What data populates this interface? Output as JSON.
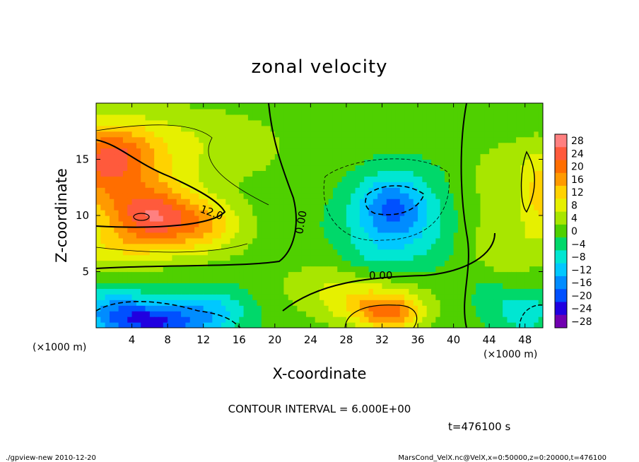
{
  "chart_data": {
    "type": "heatmap",
    "subtype": "filled contour",
    "title": "zonal velocity",
    "xlabel": "X-coordinate",
    "ylabel": "Z-coordinate",
    "x_unit_left": "(×1000 m)",
    "x_unit_right": "(×1000 m)",
    "xlim": [
      0,
      50
    ],
    "ylim": [
      0,
      20
    ],
    "x_ticks": [
      4,
      8,
      12,
      16,
      20,
      24,
      28,
      32,
      36,
      40,
      44,
      48
    ],
    "y_ticks": [
      5,
      10,
      15
    ],
    "contour_interval_text": "CONTOUR INTERVAL = 6.000E+00",
    "time_text": "t=476100 s",
    "contour_labels": [
      "12.0",
      "0.00",
      "0.00"
    ],
    "colorbar": {
      "levels": [
        28,
        24,
        20,
        16,
        12,
        8,
        4,
        0,
        -4,
        -8,
        -12,
        -16,
        -20,
        -24,
        -28
      ],
      "labels": [
        "28",
        "24",
        "20",
        "16",
        "12",
        "8",
        "4",
        "0",
        "−4",
        "−8",
        "−12",
        "−16",
        "−20",
        "−24",
        "−28"
      ],
      "colors": [
        "#ff8080",
        "#ff5a3c",
        "#ff6e00",
        "#ff9a00",
        "#ffd200",
        "#e6f000",
        "#a8e600",
        "#4fd000",
        "#00d86a",
        "#00e6d2",
        "#00c8ff",
        "#008cff",
        "#0050ff",
        "#2000e0",
        "#7000b0"
      ]
    },
    "blobs": [
      {
        "x": 0,
        "z": 14,
        "v": 17,
        "rx": 10,
        "rz": 4
      },
      {
        "x": 6,
        "z": 10,
        "v": 20,
        "rx": 5,
        "rz": 2.5
      },
      {
        "x": 2,
        "z": 15.5,
        "v": 9,
        "rx": 4,
        "rz": 2.5
      },
      {
        "x": 12,
        "z": 9,
        "v": 12,
        "rx": 5,
        "rz": 2.5
      },
      {
        "x": 2,
        "z": 7,
        "v": 8,
        "rx": 7,
        "rz": 2
      },
      {
        "x": 8,
        "z": 17.5,
        "v": 4,
        "rx": 10,
        "rz": 3
      },
      {
        "x": 17,
        "z": 16,
        "v": 3,
        "rx": 5,
        "rz": 3
      },
      {
        "x": 2,
        "z": 1.5,
        "v": -13,
        "rx": 5,
        "rz": 2
      },
      {
        "x": 7,
        "z": 0.5,
        "v": -18,
        "rx": 5,
        "rz": 1.6
      },
      {
        "x": 13,
        "z": 1.5,
        "v": -10,
        "rx": 4,
        "rz": 2
      },
      {
        "x": 33,
        "z": 11,
        "v": -12,
        "rx": 4,
        "rz": 2.8
      },
      {
        "x": 34,
        "z": 9,
        "v": -8,
        "rx": 6,
        "rz": 4
      },
      {
        "x": 31,
        "z": 6,
        "v": -4,
        "rx": 4,
        "rz": 2
      },
      {
        "x": 26,
        "z": 14,
        "v": 1,
        "rx": 6,
        "rz": 3
      },
      {
        "x": 33,
        "z": 1.2,
        "v": 14,
        "rx": 3.5,
        "rz": 1.5
      },
      {
        "x": 31,
        "z": 2,
        "v": 9,
        "rx": 6,
        "rz": 2
      },
      {
        "x": 28,
        "z": 4,
        "v": 6,
        "rx": 8,
        "rz": 2.5
      },
      {
        "x": 46,
        "z": 7,
        "v": 6,
        "rx": 4,
        "rz": 3
      },
      {
        "x": 50,
        "z": 12,
        "v": 12,
        "rx": 2.5,
        "rz": 4
      },
      {
        "x": 46,
        "z": 14,
        "v": 4,
        "rx": 4,
        "rz": 4
      },
      {
        "x": 48,
        "z": 1.5,
        "v": -8,
        "rx": 3,
        "rz": 2
      },
      {
        "x": 44,
        "z": 3,
        "v": -4,
        "rx": 2,
        "rz": 2
      },
      {
        "x": 42,
        "z": 11,
        "v": 2,
        "rx": 3,
        "rz": 5
      }
    ]
  },
  "footer": {
    "left": "./gpview-new   2010-12-20",
    "right": "MarsCond_VelX.nc@VelX,x=0:50000,z=0:20000,t=476100"
  }
}
